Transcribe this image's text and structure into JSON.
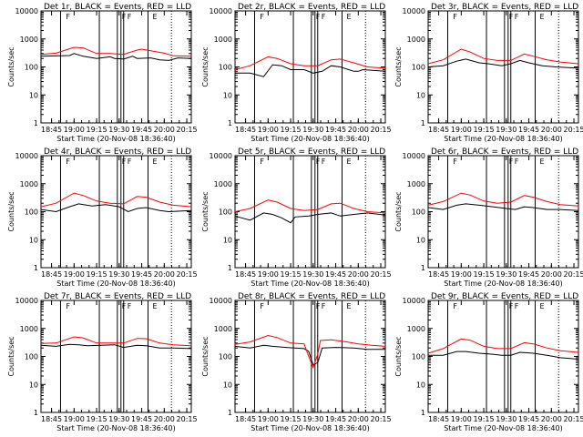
{
  "figure": {
    "xtick_labels": [
      "18:45",
      "19:00",
      "19:15",
      "19:30",
      "19:45",
      "20:00",
      "20:15"
    ],
    "yticks": [
      1,
      10,
      100,
      1000,
      10000
    ],
    "ytick_labels": [
      "1",
      "10",
      "100",
      "1000",
      "10000"
    ],
    "ylabel": "Counts/sec",
    "xlabel": "Start Time (20-Nov-08 18:36:40)",
    "events_color": "#000000",
    "lld_color": "#ff0000"
  },
  "chart_data": [
    {
      "type": "line",
      "title": "Det 1r, BLACK = Events, RED = LLD",
      "xlim": [
        18.633,
        20.3
      ],
      "ylim": [
        1,
        10000
      ],
      "yscale": "log",
      "series": [
        {
          "name": "Events",
          "values": [
            [
              18.633,
              240
            ],
            [
              18.95,
              255
            ],
            [
              19.0,
              300
            ],
            [
              19.1,
              240
            ],
            [
              19.25,
              200
            ],
            [
              19.4,
              230
            ],
            [
              19.45,
              200
            ],
            [
              19.55,
              190
            ],
            [
              19.65,
              240
            ],
            [
              19.7,
              200
            ],
            [
              19.85,
              210
            ],
            [
              19.95,
              180
            ],
            [
              20.05,
              170
            ],
            [
              20.15,
              210
            ],
            [
              20.3,
              200
            ]
          ]
        },
        {
          "name": "LLD",
          "values": [
            [
              18.633,
              280
            ],
            [
              18.8,
              310
            ],
            [
              19.0,
              500
            ],
            [
              19.1,
              480
            ],
            [
              19.25,
              300
            ],
            [
              19.4,
              300
            ],
            [
              19.55,
              280
            ],
            [
              19.7,
              400
            ],
            [
              19.75,
              430
            ],
            [
              19.85,
              380
            ],
            [
              20.0,
              310
            ],
            [
              20.1,
              250
            ],
            [
              20.3,
              240
            ]
          ]
        }
      ]
    },
    {
      "type": "line",
      "title": "Det 2r, BLACK = Events, RED = LLD",
      "xlim": [
        18.633,
        20.3
      ],
      "ylim": [
        1,
        10000
      ],
      "yscale": "log",
      "series": [
        {
          "name": "Events",
          "values": [
            [
              18.633,
              60
            ],
            [
              18.8,
              60
            ],
            [
              18.95,
              45
            ],
            [
              19.05,
              120
            ],
            [
              19.15,
              110
            ],
            [
              19.25,
              80
            ],
            [
              19.4,
              80
            ],
            [
              19.5,
              60
            ],
            [
              19.6,
              70
            ],
            [
              19.7,
              110
            ],
            [
              19.8,
              100
            ],
            [
              19.95,
              70
            ],
            [
              20.0,
              70
            ],
            [
              20.05,
              80
            ],
            [
              20.3,
              70
            ]
          ]
        },
        {
          "name": "LLD",
          "values": [
            [
              18.633,
              80
            ],
            [
              18.8,
              110
            ],
            [
              19.0,
              230
            ],
            [
              19.1,
              200
            ],
            [
              19.25,
              130
            ],
            [
              19.4,
              110
            ],
            [
              19.55,
              110
            ],
            [
              19.7,
              180
            ],
            [
              19.8,
              190
            ],
            [
              19.95,
              140
            ],
            [
              20.1,
              100
            ],
            [
              20.3,
              90
            ]
          ]
        }
      ]
    },
    {
      "type": "line",
      "title": "Det 3r, BLACK = Events, RED = LLD",
      "xlim": [
        18.633,
        20.3
      ],
      "ylim": [
        1,
        10000
      ],
      "yscale": "log",
      "series": [
        {
          "name": "Events",
          "values": [
            [
              18.633,
              100
            ],
            [
              18.8,
              110
            ],
            [
              18.95,
              160
            ],
            [
              19.05,
              190
            ],
            [
              19.2,
              140
            ],
            [
              19.3,
              130
            ],
            [
              19.45,
              110
            ],
            [
              19.55,
              130
            ],
            [
              19.65,
              170
            ],
            [
              19.75,
              140
            ],
            [
              19.9,
              110
            ],
            [
              20.05,
              100
            ],
            [
              20.3,
              90
            ]
          ]
        },
        {
          "name": "LLD",
          "values": [
            [
              18.633,
              130
            ],
            [
              18.8,
              180
            ],
            [
              19.0,
              430
            ],
            [
              19.1,
              340
            ],
            [
              19.25,
              200
            ],
            [
              19.4,
              170
            ],
            [
              19.55,
              170
            ],
            [
              19.7,
              290
            ],
            [
              19.8,
              240
            ],
            [
              19.95,
              180
            ],
            [
              20.1,
              150
            ],
            [
              20.3,
              130
            ]
          ]
        }
      ]
    },
    {
      "type": "line",
      "title": "Det 4r, BLACK = Events, RED = LLD",
      "xlim": [
        18.633,
        20.3
      ],
      "ylim": [
        1,
        10000
      ],
      "yscale": "log",
      "series": [
        {
          "name": "Events",
          "values": [
            [
              18.633,
              120
            ],
            [
              18.8,
              100
            ],
            [
              18.95,
              150
            ],
            [
              19.05,
              190
            ],
            [
              19.2,
              160
            ],
            [
              19.35,
              180
            ],
            [
              19.5,
              150
            ],
            [
              19.6,
              100
            ],
            [
              19.7,
              130
            ],
            [
              19.8,
              140
            ],
            [
              19.95,
              110
            ],
            [
              20.05,
              100
            ],
            [
              20.3,
              110
            ]
          ]
        },
        {
          "name": "LLD",
          "values": [
            [
              18.633,
              150
            ],
            [
              18.8,
              200
            ],
            [
              19.0,
              460
            ],
            [
              19.1,
              380
            ],
            [
              19.25,
              240
            ],
            [
              19.4,
              200
            ],
            [
              19.55,
              190
            ],
            [
              19.7,
              350
            ],
            [
              19.8,
              330
            ],
            [
              19.95,
              220
            ],
            [
              20.1,
              170
            ],
            [
              20.3,
              150
            ]
          ]
        }
      ]
    },
    {
      "type": "line",
      "title": "Det 5r, BLACK = Events, RED = LLD",
      "xlim": [
        18.633,
        20.3
      ],
      "ylim": [
        1,
        10000
      ],
      "yscale": "log",
      "series": [
        {
          "name": "Events",
          "values": [
            [
              18.633,
              70
            ],
            [
              18.8,
              50
            ],
            [
              18.95,
              90
            ],
            [
              19.05,
              80
            ],
            [
              19.15,
              60
            ],
            [
              19.25,
              40
            ],
            [
              19.3,
              65
            ],
            [
              19.45,
              70
            ],
            [
              19.55,
              80
            ],
            [
              19.7,
              90
            ],
            [
              19.8,
              70
            ],
            [
              19.95,
              80
            ],
            [
              20.1,
              90
            ],
            [
              20.3,
              75
            ]
          ]
        },
        {
          "name": "LLD",
          "values": [
            [
              18.633,
              100
            ],
            [
              18.8,
              130
            ],
            [
              19.0,
              260
            ],
            [
              19.1,
              220
            ],
            [
              19.25,
              130
            ],
            [
              19.4,
              110
            ],
            [
              19.55,
              120
            ],
            [
              19.7,
              190
            ],
            [
              19.8,
              200
            ],
            [
              19.95,
              130
            ],
            [
              20.1,
              100
            ],
            [
              20.3,
              90
            ]
          ]
        }
      ]
    },
    {
      "type": "line",
      "title": "Det 6r, BLACK = Events, RED = LLD",
      "xlim": [
        18.633,
        20.3
      ],
      "ylim": [
        1,
        10000
      ],
      "yscale": "log",
      "series": [
        {
          "name": "Events",
          "values": [
            [
              18.633,
              140
            ],
            [
              18.8,
              120
            ],
            [
              18.95,
              170
            ],
            [
              19.05,
              190
            ],
            [
              19.2,
              170
            ],
            [
              19.35,
              150
            ],
            [
              19.5,
              130
            ],
            [
              19.6,
              120
            ],
            [
              19.7,
              150
            ],
            [
              19.8,
              140
            ],
            [
              19.95,
              120
            ],
            [
              20.1,
              120
            ],
            [
              20.3,
              110
            ]
          ]
        },
        {
          "name": "LLD",
          "values": [
            [
              18.633,
              170
            ],
            [
              18.8,
              230
            ],
            [
              19.0,
              460
            ],
            [
              19.1,
              390
            ],
            [
              19.25,
              240
            ],
            [
              19.4,
              200
            ],
            [
              19.55,
              220
            ],
            [
              19.7,
              380
            ],
            [
              19.8,
              330
            ],
            [
              19.95,
              230
            ],
            [
              20.1,
              180
            ],
            [
              20.3,
              160
            ]
          ]
        }
      ]
    },
    {
      "type": "line",
      "title": "Det 7r, BLACK = Events, RED = LLD",
      "xlim": [
        18.633,
        20.3
      ],
      "ylim": [
        1,
        10000
      ],
      "yscale": "log",
      "series": [
        {
          "name": "Events",
          "values": [
            [
              18.633,
              250
            ],
            [
              18.8,
              230
            ],
            [
              18.95,
              270
            ],
            [
              19.05,
              260
            ],
            [
              19.15,
              240
            ],
            [
              19.3,
              250
            ],
            [
              19.45,
              260
            ],
            [
              19.55,
              210
            ],
            [
              19.7,
              250
            ],
            [
              19.8,
              240
            ],
            [
              19.95,
              200
            ],
            [
              20.1,
              200
            ],
            [
              20.3,
              190
            ]
          ]
        },
        {
          "name": "LLD",
          "values": [
            [
              18.633,
              290
            ],
            [
              18.8,
              300
            ],
            [
              19.0,
              500
            ],
            [
              19.1,
              460
            ],
            [
              19.25,
              300
            ],
            [
              19.4,
              300
            ],
            [
              19.55,
              300
            ],
            [
              19.7,
              440
            ],
            [
              19.8,
              430
            ],
            [
              19.95,
              300
            ],
            [
              20.1,
              260
            ],
            [
              20.3,
              240
            ]
          ]
        }
      ]
    },
    {
      "type": "line",
      "title": "Det 8r, BLACK = Events, RED = LLD",
      "xlim": [
        18.633,
        20.3
      ],
      "ylim": [
        1,
        10000
      ],
      "yscale": "log",
      "series": [
        {
          "name": "Events",
          "values": [
            [
              18.633,
              230
            ],
            [
              18.8,
              200
            ],
            [
              18.95,
              250
            ],
            [
              19.05,
              230
            ],
            [
              19.2,
              210
            ],
            [
              19.3,
              200
            ],
            [
              19.4,
              190
            ],
            [
              19.45,
              150
            ],
            [
              19.5,
              50
            ],
            [
              19.55,
              60
            ],
            [
              19.6,
              200
            ],
            [
              19.75,
              210
            ],
            [
              19.95,
              200
            ],
            [
              20.1,
              180
            ],
            [
              20.3,
              180
            ]
          ]
        },
        {
          "name": "LLD",
          "values": [
            [
              18.633,
              270
            ],
            [
              18.8,
              330
            ],
            [
              19.0,
              560
            ],
            [
              19.1,
              470
            ],
            [
              19.25,
              300
            ],
            [
              19.4,
              280
            ],
            [
              19.45,
              100
            ],
            [
              19.5,
              40
            ],
            [
              19.55,
              120
            ],
            [
              19.58,
              370
            ],
            [
              19.7,
              390
            ],
            [
              19.85,
              340
            ],
            [
              20.0,
              280
            ],
            [
              20.15,
              250
            ],
            [
              20.3,
              230
            ]
          ]
        }
      ]
    },
    {
      "type": "line",
      "title": "Det 9r, BLACK = Events, RED = LLD",
      "xlim": [
        18.633,
        20.3
      ],
      "ylim": [
        1,
        10000
      ],
      "yscale": "log",
      "series": [
        {
          "name": "Events",
          "values": [
            [
              18.633,
              110
            ],
            [
              18.8,
              110
            ],
            [
              18.95,
              150
            ],
            [
              19.05,
              150
            ],
            [
              19.2,
              130
            ],
            [
              19.35,
              120
            ],
            [
              19.45,
              110
            ],
            [
              19.55,
              110
            ],
            [
              19.65,
              140
            ],
            [
              19.8,
              130
            ],
            [
              19.95,
              110
            ],
            [
              20.1,
              90
            ],
            [
              20.3,
              80
            ]
          ]
        },
        {
          "name": "LLD",
          "values": [
            [
              18.633,
              130
            ],
            [
              18.8,
              190
            ],
            [
              19.0,
              420
            ],
            [
              19.1,
              380
            ],
            [
              19.25,
              230
            ],
            [
              19.4,
              190
            ],
            [
              19.55,
              190
            ],
            [
              19.7,
              310
            ],
            [
              19.8,
              280
            ],
            [
              19.95,
              200
            ],
            [
              20.1,
              160
            ],
            [
              20.3,
              140
            ]
          ]
        }
      ]
    }
  ]
}
